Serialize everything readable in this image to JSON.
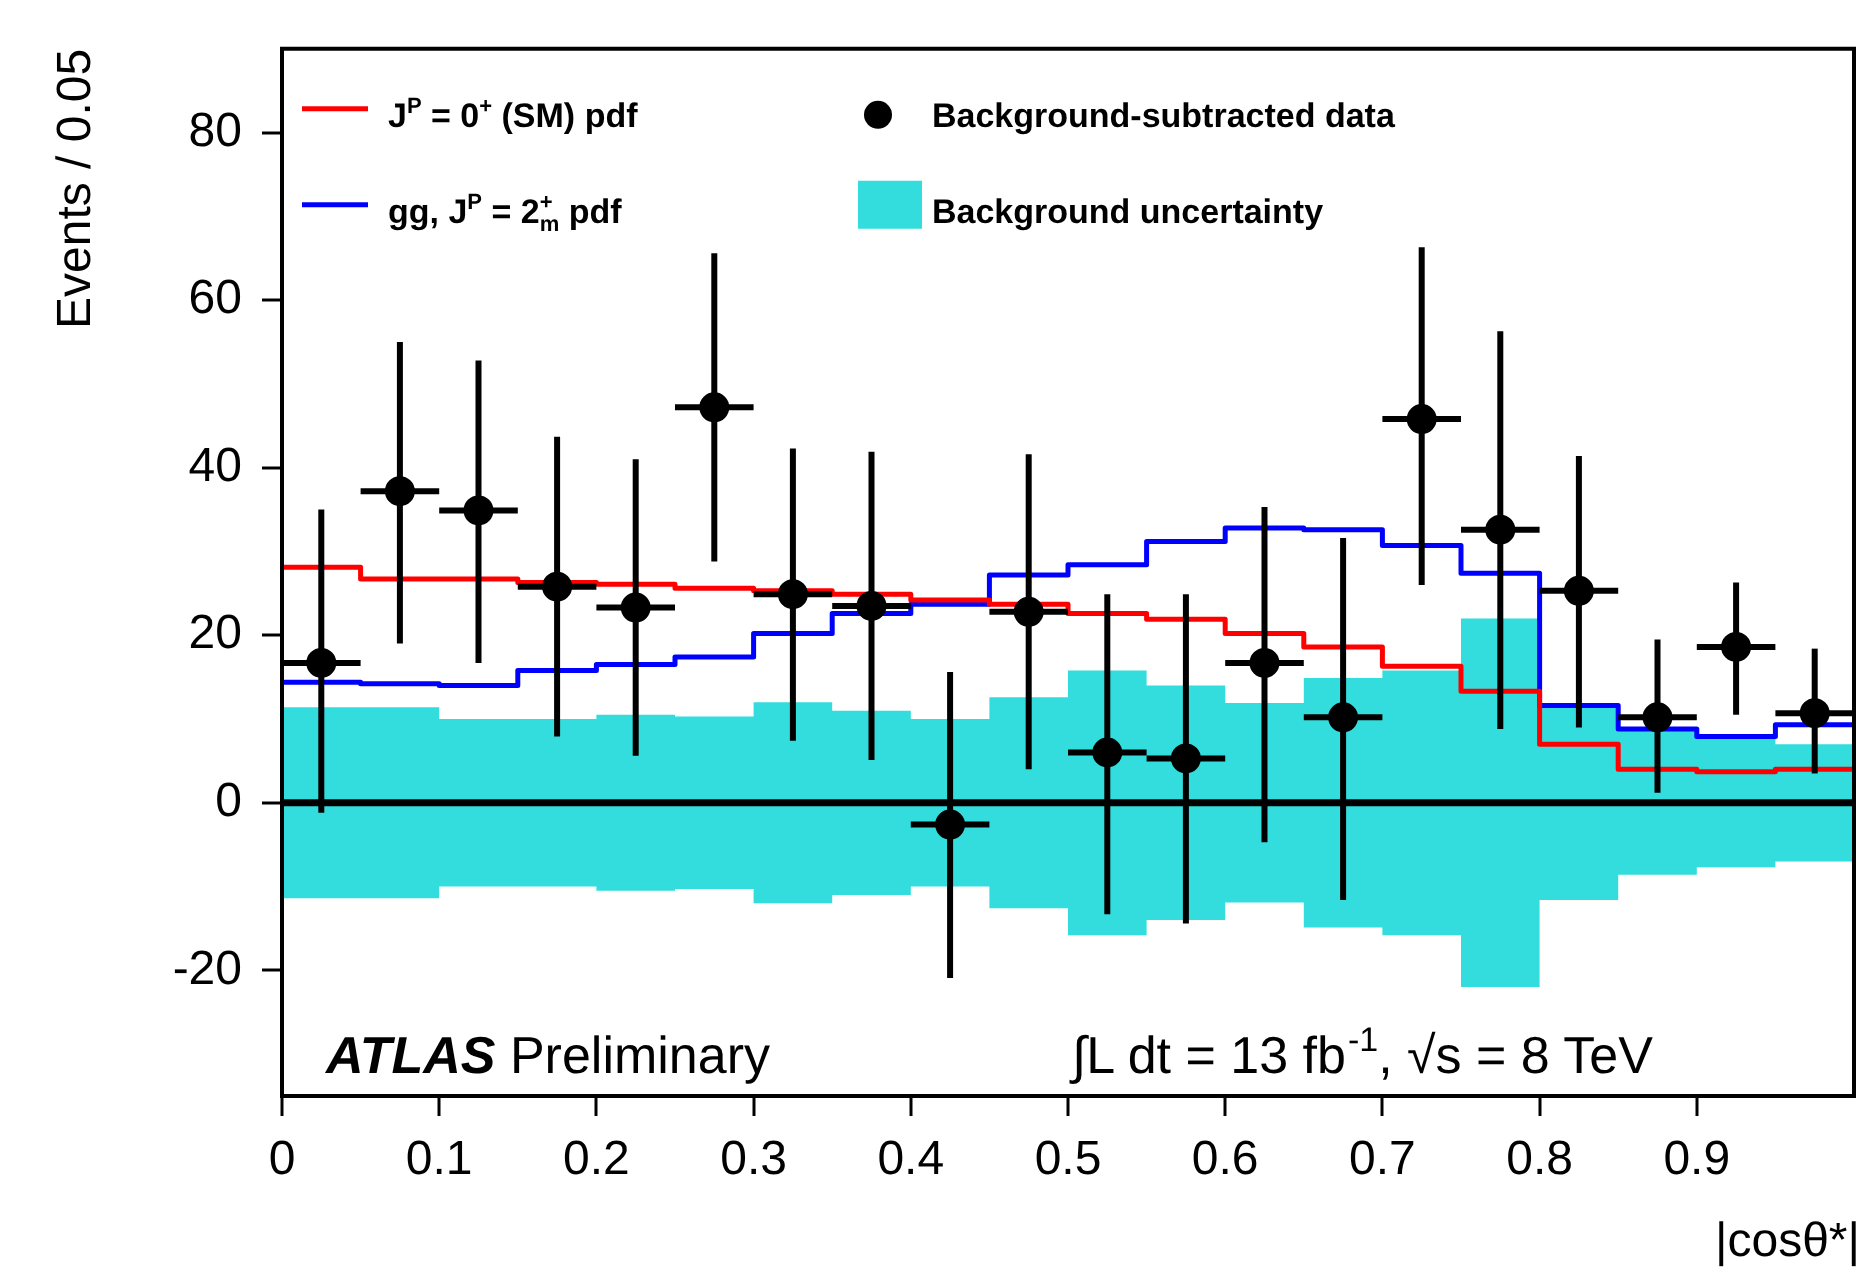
{
  "chart_data": {
    "type": "scatter",
    "xlabel": "|cosθ*|",
    "ylabel": "Events / 0.05",
    "xlim": [
      0,
      1
    ],
    "ylim": [
      -35,
      90
    ],
    "xticks": [
      0,
      0.1,
      0.2,
      0.3,
      0.4,
      0.5,
      0.6,
      0.7,
      0.8,
      0.9
    ],
    "yticks": [
      -20,
      0,
      20,
      40,
      60,
      80
    ],
    "grid": false,
    "legend": "top left",
    "annotations": [
      "ATLAS Preliminary",
      "∫L dt = 13 fb$^{-1}$, √s = 8 TeV"
    ],
    "ref_lines": [
      {
        "axis": "y",
        "value": 0,
        "color": "#000000"
      }
    ],
    "series": [
      {
        "type": "step",
        "name": "J$^{P}$ = 0$^{+}$ (SM) pdf",
        "color": "#ff0000",
        "x": [
          0,
          0.05,
          0.1,
          0.15,
          0.2,
          0.25,
          0.3,
          0.35,
          0.4,
          0.45,
          0.5,
          0.55,
          0.6,
          0.65,
          0.7,
          0.75,
          0.8,
          0.85,
          0.9,
          0.95,
          1
        ],
        "values": [
          28.1,
          26.7,
          26.7,
          26.3,
          26.1,
          25.6,
          25.3,
          24.9,
          24.2,
          23.7,
          22.6,
          21.9,
          20.2,
          18.6,
          16.3,
          13.3,
          7,
          4,
          3.7,
          4,
          4
        ]
      },
      {
        "type": "step",
        "name": "gg, J$^{P}$ = 2$^{+}$$_{m}$ pdf",
        "color": "#0000ff",
        "x": [
          0,
          0.05,
          0.1,
          0.15,
          0.2,
          0.25,
          0.3,
          0.35,
          0.4,
          0.45,
          0.5,
          0.55,
          0.6,
          0.65,
          0.7,
          0.75,
          0.8,
          0.85,
          0.9,
          0.95,
          1
        ],
        "values": [
          14.4,
          14.2,
          14,
          15.8,
          16.5,
          17.4,
          20.2,
          22.6,
          23.7,
          27.2,
          28.4,
          31.2,
          32.8,
          32.6,
          30.7,
          27.4,
          11.6,
          8.8,
          7.9,
          9.3,
          9.3
        ]
      },
      {
        "name": "Background-subtracted data",
        "color": "#000000",
        "marker": "circle",
        "x": [
          0.025,
          0.075,
          0.125,
          0.175,
          0.225,
          0.275,
          0.325,
          0.375,
          0.425,
          0.475,
          0.525,
          0.575,
          0.625,
          0.675,
          0.725,
          0.775,
          0.825,
          0.875,
          0.925,
          0.975
        ],
        "values": [
          16.7,
          37.2,
          34.9,
          25.8,
          23.3,
          47.2,
          24.9,
          23.5,
          -2.6,
          22.8,
          6,
          5.3,
          16.7,
          10.2,
          45.8,
          32.6,
          25.3,
          10.2,
          18.6,
          10.7
        ],
        "errors": [
          [
            -1.2,
            35
          ],
          [
            19,
            55
          ],
          [
            16.7,
            52.8
          ],
          [
            7.9,
            43.7
          ],
          [
            5.6,
            41
          ],
          [
            28.8,
            65.6
          ],
          [
            7.4,
            42.3
          ],
          [
            5.1,
            41.9
          ],
          [
            -20.9,
            15.6
          ],
          [
            4,
            41.6
          ],
          [
            -13.3,
            24.9
          ],
          [
            -14.4,
            24.9
          ],
          [
            -4.7,
            35.3
          ],
          [
            -11.6,
            31.6
          ],
          [
            26,
            66.3
          ],
          [
            8.8,
            56.3
          ],
          [
            9,
            41.4
          ],
          [
            1.2,
            19.5
          ],
          [
            10.5,
            26.3
          ],
          [
            3.5,
            18.4
          ]
        ],
        "xerrors": [
          0.025,
          0.025,
          0.025,
          0.025,
          0.025,
          0.025,
          0.025,
          0.025,
          0.025,
          0.025,
          0.025,
          0.025,
          0.025,
          0.025,
          0.025,
          0.025,
          0.025,
          0.025,
          0.025,
          0.025
        ]
      },
      {
        "type": "step",
        "name": "Background uncertainty",
        "color": "#33dddd",
        "x": [
          0,
          0.05,
          0.1,
          0.15,
          0.2,
          0.25,
          0.3,
          0.35,
          0.4,
          0.45,
          0.5,
          0.55,
          0.6,
          0.65,
          0.7,
          0.75,
          0.8,
          0.85,
          0.9,
          0.95,
          1
        ],
        "values": [
          null,
          null,
          null,
          null,
          null,
          null,
          null,
          null,
          null,
          null,
          null,
          null,
          null,
          null,
          null,
          null,
          null,
          null,
          null,
          null,
          null
        ],
        "lower": [
          -11.4,
          -11.4,
          -10,
          -10,
          -10.5,
          -10.3,
          -12,
          -11,
          -10,
          -12.6,
          -15.8,
          -14,
          -11.9,
          -14.9,
          -15.8,
          -22,
          -11.6,
          -8.6,
          -7.7,
          -7,
          -7
        ],
        "upper": [
          11.4,
          11.4,
          10,
          10,
          10.5,
          10.3,
          12,
          11,
          10,
          12.6,
          15.8,
          14,
          11.9,
          14.9,
          15.8,
          22,
          11.6,
          8.6,
          7.7,
          7,
          7
        ]
      }
    ]
  }
}
